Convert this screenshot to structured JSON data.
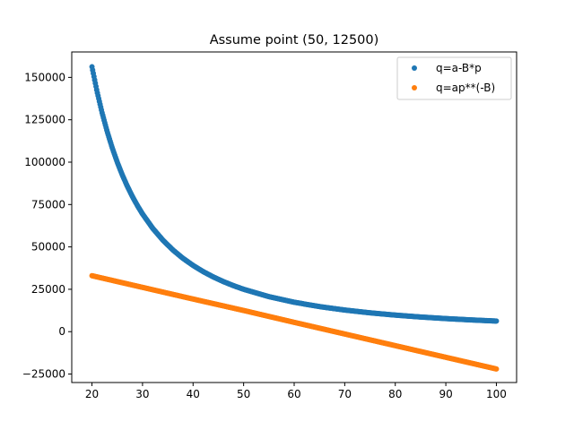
{
  "chart_data": {
    "type": "scatter",
    "title": "Assume point (50, 12500)",
    "xlabel": "",
    "ylabel": "",
    "xlim": [
      16,
      104
    ],
    "ylim": [
      -30000,
      165000
    ],
    "x_ticks": [
      20,
      30,
      40,
      50,
      60,
      70,
      80,
      90,
      100
    ],
    "y_ticks": [
      -25000,
      0,
      25000,
      50000,
      75000,
      100000,
      125000,
      150000
    ],
    "grid": false,
    "legend_position": "top-right",
    "series": [
      {
        "name": "q=a-B*p",
        "color": "#1f77b4",
        "x": [
          20,
          21,
          22,
          23,
          24,
          25,
          26,
          27,
          28,
          29,
          30,
          32,
          34,
          36,
          38,
          40,
          42,
          44,
          46,
          48,
          50,
          55,
          60,
          65,
          70,
          75,
          80,
          85,
          90,
          95,
          100
        ],
        "y": [
          156250,
          141723,
          129132,
          118147,
          108507,
          100000,
          92456,
          85734,
          79719,
          74316,
          69444,
          61035,
          54066,
          48225,
          43283,
          39063,
          35431,
          32283,
          29537,
          27127,
          25000,
          20661,
          17361,
          14793,
          12755,
          11111,
          9766,
          8651,
          7716,
          6925,
          6250
        ]
      },
      {
        "name": "q=ap**(-B)",
        "color": "#ff7f0e",
        "x": [
          20,
          30,
          40,
          50,
          60,
          70,
          80,
          90,
          100
        ],
        "y": [
          33000,
          26125,
          19250,
          12500,
          5500,
          -1375,
          -8250,
          -15125,
          -22000
        ]
      }
    ]
  }
}
